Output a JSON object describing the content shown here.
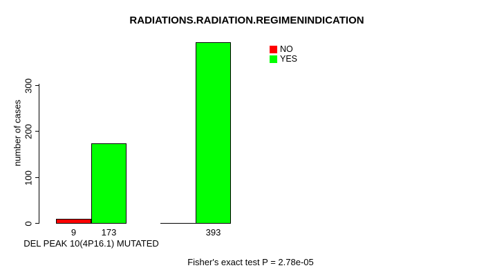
{
  "chart_data": {
    "type": "bar",
    "title": "RADIATIONS.RADIATION.REGIMENINDICATION",
    "ylabel": "number of cases",
    "xlabel": "",
    "yticks": [
      0,
      100,
      200,
      300
    ],
    "ylim": [
      0,
      395
    ],
    "grid": false,
    "legend_position": "top-right",
    "series": [
      {
        "name": "NO",
        "color": "#ff0000",
        "values": [
          9,
          0
        ]
      },
      {
        "name": "YES",
        "color": "#00ff00",
        "values": [
          173,
          393
        ]
      }
    ],
    "groups": [
      {
        "label": "DEL PEAK 10(4P16.1) MUTATED",
        "bars": [
          {
            "series": "NO",
            "color": "#ff0000",
            "value": 9,
            "value_label": "9"
          },
          {
            "series": "YES",
            "color": "#00ff00",
            "value": 173,
            "value_label": "173"
          }
        ]
      },
      {
        "label": "",
        "bars": [
          {
            "series": "NO",
            "color": "#ff0000",
            "value": 0,
            "value_label": ""
          },
          {
            "series": "YES",
            "color": "#00ff00",
            "value": 393,
            "value_label": "393"
          }
        ]
      }
    ],
    "legend": [
      {
        "label": "NO",
        "color": "#ff0000"
      },
      {
        "label": "YES",
        "color": "#00ff00"
      }
    ],
    "caption": "Fisher's exact test P = 2.78e-05",
    "axis_color": "#000000",
    "background_color": "#ffffff"
  }
}
